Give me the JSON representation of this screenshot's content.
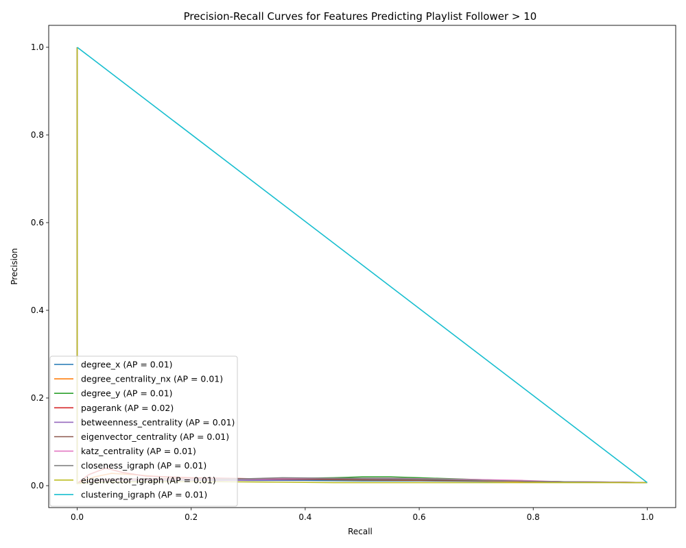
{
  "chart_data": {
    "type": "line",
    "title": "Precision-Recall Curves for Features Predicting Playlist Follower > 10",
    "xlabel": "Recall",
    "ylabel": "Precision",
    "xlim": [
      -0.05,
      1.05
    ],
    "ylim": [
      -0.05,
      1.05
    ],
    "xticks": [
      0.0,
      0.2,
      0.4,
      0.6,
      0.8,
      1.0
    ],
    "yticks": [
      0.0,
      0.2,
      0.4,
      0.6,
      0.8,
      1.0
    ],
    "xtick_labels": [
      "0.0",
      "0.2",
      "0.4",
      "0.6",
      "0.8",
      "1.0"
    ],
    "ytick_labels": [
      "0.0",
      "0.2",
      "0.4",
      "0.6",
      "0.8",
      "1.0"
    ],
    "legend_position": "lower-left",
    "series": [
      {
        "name": "degree_x (AP = 0.01)",
        "color": "#1f77b4",
        "x": [
          0,
          0,
          0.02,
          0.1,
          0.2,
          0.3,
          0.4,
          0.5,
          0.6,
          0.7,
          0.8,
          0.9,
          1.0
        ],
        "y": [
          1.0,
          0.005,
          0.01,
          0.012,
          0.013,
          0.012,
          0.012,
          0.011,
          0.011,
          0.01,
          0.009,
          0.008,
          0.007
        ]
      },
      {
        "name": "degree_centrality_nx (AP = 0.01)",
        "color": "#ff7f0e",
        "x": [
          0,
          0,
          0.03,
          0.06,
          0.1,
          0.15,
          0.2,
          0.3,
          0.4,
          0.5,
          0.6,
          0.7,
          0.8,
          0.9,
          1.0
        ],
        "y": [
          1.0,
          0.005,
          0.02,
          0.028,
          0.025,
          0.02,
          0.018,
          0.015,
          0.014,
          0.013,
          0.012,
          0.011,
          0.009,
          0.008,
          0.007
        ]
      },
      {
        "name": "degree_y (AP = 0.01)",
        "color": "#2ca02c",
        "x": [
          0,
          0,
          0.05,
          0.15,
          0.25,
          0.35,
          0.45,
          0.5,
          0.55,
          0.6,
          0.7,
          0.8,
          0.9,
          1.0
        ],
        "y": [
          1.0,
          0.005,
          0.012,
          0.014,
          0.015,
          0.016,
          0.018,
          0.02,
          0.02,
          0.018,
          0.014,
          0.01,
          0.008,
          0.007
        ]
      },
      {
        "name": "pagerank (AP = 0.02)",
        "color": "#d62728",
        "x": [
          0,
          0,
          0.02,
          0.05,
          0.08,
          0.12,
          0.2,
          0.3,
          0.4,
          0.5,
          0.6,
          0.7,
          0.8,
          0.9,
          1.0
        ],
        "y": [
          1.0,
          0.005,
          0.025,
          0.04,
          0.03,
          0.022,
          0.018,
          0.016,
          0.015,
          0.014,
          0.013,
          0.012,
          0.01,
          0.008,
          0.007
        ]
      },
      {
        "name": "betweenness_centrality (AP = 0.01)",
        "color": "#9467bd",
        "x": [
          0,
          0,
          0.05,
          0.15,
          0.25,
          0.35,
          0.45,
          0.55,
          0.65,
          0.75,
          0.85,
          0.95,
          1.0
        ],
        "y": [
          1.0,
          0.005,
          0.011,
          0.012,
          0.012,
          0.013,
          0.014,
          0.014,
          0.013,
          0.011,
          0.009,
          0.008,
          0.007
        ]
      },
      {
        "name": "eigenvector_centrality (AP = 0.01)",
        "color": "#8c564b",
        "x": [
          0,
          0,
          0.05,
          0.15,
          0.25,
          0.35,
          0.45,
          0.55,
          0.65,
          0.75,
          0.85,
          0.95,
          1.0
        ],
        "y": [
          1.0,
          0.005,
          0.015,
          0.016,
          0.016,
          0.015,
          0.014,
          0.013,
          0.012,
          0.011,
          0.009,
          0.008,
          0.007
        ]
      },
      {
        "name": "katz_centrality (AP = 0.01)",
        "color": "#e377c2",
        "x": [
          0,
          0,
          0.05,
          0.15,
          0.25,
          0.35,
          0.45,
          0.55,
          0.65,
          0.7,
          0.78,
          0.85,
          0.95,
          1.0
        ],
        "y": [
          1.0,
          0.005,
          0.012,
          0.014,
          0.015,
          0.016,
          0.017,
          0.017,
          0.015,
          0.014,
          0.012,
          0.009,
          0.008,
          0.007
        ]
      },
      {
        "name": "closeness_igraph (AP = 0.01)",
        "color": "#7f7f7f",
        "x": [
          0,
          0,
          0.05,
          0.15,
          0.25,
          0.36,
          0.45,
          0.55,
          0.65,
          0.75,
          0.85,
          0.92,
          1.0
        ],
        "y": [
          1.0,
          0.005,
          0.01,
          0.012,
          0.014,
          0.018,
          0.017,
          0.016,
          0.014,
          0.011,
          0.009,
          0.008,
          0.007
        ]
      },
      {
        "name": "eigenvector_igraph (AP = 0.01)",
        "color": "#bcbd22",
        "x": [
          0,
          0,
          0.05,
          0.15,
          0.25,
          0.35,
          0.45,
          0.55,
          0.65,
          0.75,
          0.85,
          0.97,
          1.0
        ],
        "y": [
          1.0,
          0.005,
          0.008,
          0.009,
          0.009,
          0.008,
          0.007,
          0.007,
          0.007,
          0.007,
          0.007,
          0.007,
          0.007
        ]
      },
      {
        "name": "clustering_igraph (AP = 0.01)",
        "color": "#17becf",
        "x": [
          0,
          1.0
        ],
        "y": [
          1.0,
          0.007
        ]
      }
    ]
  }
}
